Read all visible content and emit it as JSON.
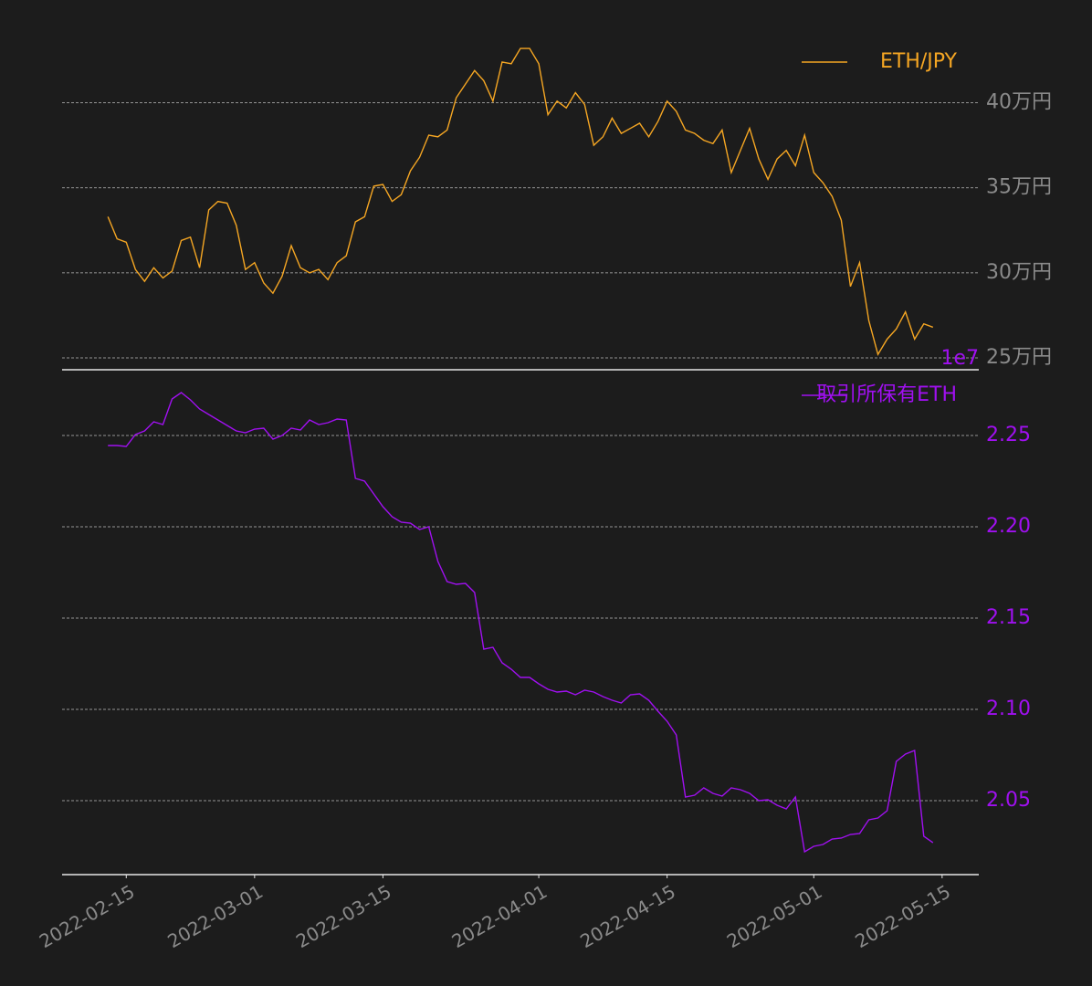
{
  "chart_data": [
    {
      "type": "line",
      "x": [
        "2022-02-13",
        "2022-02-14",
        "2022-02-15",
        "2022-02-16",
        "2022-02-17",
        "2022-02-18",
        "2022-02-19",
        "2022-02-20",
        "2022-02-21",
        "2022-02-22",
        "2022-02-23",
        "2022-02-24",
        "2022-02-25",
        "2022-02-26",
        "2022-02-27",
        "2022-02-28",
        "2022-03-01",
        "2022-03-02",
        "2022-03-03",
        "2022-03-04",
        "2022-03-05",
        "2022-03-06",
        "2022-03-07",
        "2022-03-08",
        "2022-03-09",
        "2022-03-10",
        "2022-03-11",
        "2022-03-12",
        "2022-03-13",
        "2022-03-14",
        "2022-03-15",
        "2022-03-16",
        "2022-03-17",
        "2022-03-18",
        "2022-03-19",
        "2022-03-20",
        "2022-03-21",
        "2022-03-22",
        "2022-03-23",
        "2022-03-24",
        "2022-03-25",
        "2022-03-26",
        "2022-03-27",
        "2022-03-28",
        "2022-03-29",
        "2022-03-30",
        "2022-03-31",
        "2022-04-01",
        "2022-04-02",
        "2022-04-03",
        "2022-04-04",
        "2022-04-05",
        "2022-04-06",
        "2022-04-07",
        "2022-04-08",
        "2022-04-09",
        "2022-04-10",
        "2022-04-11",
        "2022-04-12",
        "2022-04-13",
        "2022-04-14",
        "2022-04-15",
        "2022-04-16",
        "2022-04-17",
        "2022-04-18",
        "2022-04-19",
        "2022-04-20",
        "2022-04-21",
        "2022-04-22",
        "2022-04-23",
        "2022-04-24",
        "2022-04-25",
        "2022-04-26",
        "2022-04-27",
        "2022-04-28",
        "2022-04-29",
        "2022-04-30",
        "2022-05-01",
        "2022-05-02",
        "2022-05-03",
        "2022-05-04",
        "2022-05-05",
        "2022-05-06",
        "2022-05-07",
        "2022-05-08",
        "2022-05-09",
        "2022-05-10",
        "2022-05-11",
        "2022-05-12",
        "2022-05-13",
        "2022-05-14"
      ],
      "xlim": [
        "2022-02-08",
        "2022-05-19"
      ],
      "series": [
        {
          "name": "ETH/JPY",
          "color": "#f5a623",
          "values": [
            333000,
            320000,
            318000,
            302000,
            295000,
            303000,
            297000,
            301000,
            319000,
            321000,
            303000,
            337000,
            342000,
            341000,
            328000,
            302000,
            306000,
            294000,
            288000,
            298000,
            316000,
            303000,
            300000,
            302000,
            296000,
            306000,
            310000,
            330000,
            333000,
            351000,
            352000,
            342000,
            346000,
            360000,
            368000,
            381000,
            380000,
            384000,
            403000,
            411000,
            419000,
            413000,
            401000,
            424000,
            423000,
            432000,
            432000,
            423000,
            393000,
            401000,
            397000,
            406000,
            399000,
            375000,
            380000,
            391000,
            382000,
            385000,
            388000,
            380000,
            389000,
            401000,
            395000,
            384000,
            382000,
            378000,
            376000,
            384000,
            359000,
            372000,
            385000,
            367000,
            355000,
            367000,
            372000,
            363000,
            381000,
            359000,
            353000,
            345000,
            331000,
            292000,
            306000,
            272000,
            252000,
            261000,
            267000,
            277000,
            261000,
            270000,
            268000
          ]
        }
      ],
      "ylim": [
        243000,
        439000
      ],
      "yticks": [
        {
          "value": 250000,
          "label": "25万円"
        },
        {
          "value": 300000,
          "label": "30万円"
        },
        {
          "value": 350000,
          "label": "35万円"
        },
        {
          "value": 400000,
          "label": "40万円"
        }
      ],
      "grid": true,
      "legend": "upper right",
      "tick_color": "#8a8a8a"
    },
    {
      "type": "line",
      "x": [
        "2022-02-13",
        "2022-02-14",
        "2022-02-15",
        "2022-02-16",
        "2022-02-17",
        "2022-02-18",
        "2022-02-19",
        "2022-02-20",
        "2022-02-21",
        "2022-02-22",
        "2022-02-23",
        "2022-02-24",
        "2022-02-25",
        "2022-02-26",
        "2022-02-27",
        "2022-02-28",
        "2022-03-01",
        "2022-03-02",
        "2022-03-03",
        "2022-03-04",
        "2022-03-05",
        "2022-03-06",
        "2022-03-07",
        "2022-03-08",
        "2022-03-09",
        "2022-03-10",
        "2022-03-11",
        "2022-03-12",
        "2022-03-13",
        "2022-03-14",
        "2022-03-15",
        "2022-03-16",
        "2022-03-17",
        "2022-03-18",
        "2022-03-19",
        "2022-03-20",
        "2022-03-21",
        "2022-03-22",
        "2022-03-23",
        "2022-03-24",
        "2022-03-25",
        "2022-03-26",
        "2022-03-27",
        "2022-03-28",
        "2022-03-29",
        "2022-03-30",
        "2022-03-31",
        "2022-04-01",
        "2022-04-02",
        "2022-04-03",
        "2022-04-04",
        "2022-04-05",
        "2022-04-06",
        "2022-04-07",
        "2022-04-08",
        "2022-04-09",
        "2022-04-10",
        "2022-04-11",
        "2022-04-12",
        "2022-04-13",
        "2022-04-14",
        "2022-04-15",
        "2022-04-16",
        "2022-04-17",
        "2022-04-18",
        "2022-04-19",
        "2022-04-20",
        "2022-04-21",
        "2022-04-22",
        "2022-04-23",
        "2022-04-24",
        "2022-04-25",
        "2022-04-26",
        "2022-04-27",
        "2022-04-28",
        "2022-04-29",
        "2022-04-30",
        "2022-05-01",
        "2022-05-02",
        "2022-05-03",
        "2022-05-04",
        "2022-05-05",
        "2022-05-06",
        "2022-05-07",
        "2022-05-08",
        "2022-05-09",
        "2022-05-10",
        "2022-05-11",
        "2022-05-12",
        "2022-05-13",
        "2022-05-14"
      ],
      "xlim": [
        "2022-02-08",
        "2022-05-19"
      ],
      "xticks": [
        "2022-02-15",
        "2022-03-01",
        "2022-03-15",
        "2022-04-01",
        "2022-04-15",
        "2022-05-01",
        "2022-05-15"
      ],
      "series": [
        {
          "name": "取引所保有ETH",
          "color": "#a010f0",
          "values": [
            2.2445,
            2.2445,
            2.244,
            2.2505,
            2.2525,
            2.2575,
            2.256,
            2.27,
            2.2735,
            2.2695,
            2.2645,
            2.2615,
            2.2585,
            2.2555,
            2.2525,
            2.2515,
            2.2535,
            2.254,
            2.248,
            2.25,
            2.254,
            2.253,
            2.2585,
            2.256,
            2.257,
            2.259,
            2.2585,
            2.2265,
            2.225,
            2.218,
            2.211,
            2.2055,
            2.2025,
            2.202,
            2.1985,
            2.2,
            2.181,
            2.17,
            2.1685,
            2.169,
            2.164,
            2.133,
            2.134,
            2.1255,
            2.122,
            2.1175,
            2.1175,
            2.114,
            2.111,
            2.1095,
            2.11,
            2.108,
            2.1105,
            2.1095,
            2.107,
            2.105,
            2.1035,
            2.108,
            2.1085,
            2.105,
            2.099,
            2.0935,
            2.086,
            2.052,
            2.053,
            2.057,
            2.054,
            2.0525,
            2.057,
            2.056,
            2.054,
            2.05,
            2.0505,
            2.0475,
            2.0455,
            2.052,
            2.022,
            2.025,
            2.026,
            2.029,
            2.0295,
            2.0315,
            2.032,
            2.0395,
            2.0405,
            2.0445,
            2.0715,
            2.0755,
            2.0775,
            2.0305,
            2.027
          ]
        }
      ],
      "ylim": [
        2.0095,
        2.286
      ],
      "yticks": [
        {
          "value": 2.05,
          "label": "2.05"
        },
        {
          "value": 2.1,
          "label": "2.10"
        },
        {
          "value": 2.15,
          "label": "2.15"
        },
        {
          "value": 2.2,
          "label": "2.20"
        },
        2.25
      ],
      "offset_label": "1e7",
      "grid": true,
      "legend": "upper right",
      "tick_color": "#a010f0",
      "xtick_color": "#8a8a8a"
    }
  ]
}
